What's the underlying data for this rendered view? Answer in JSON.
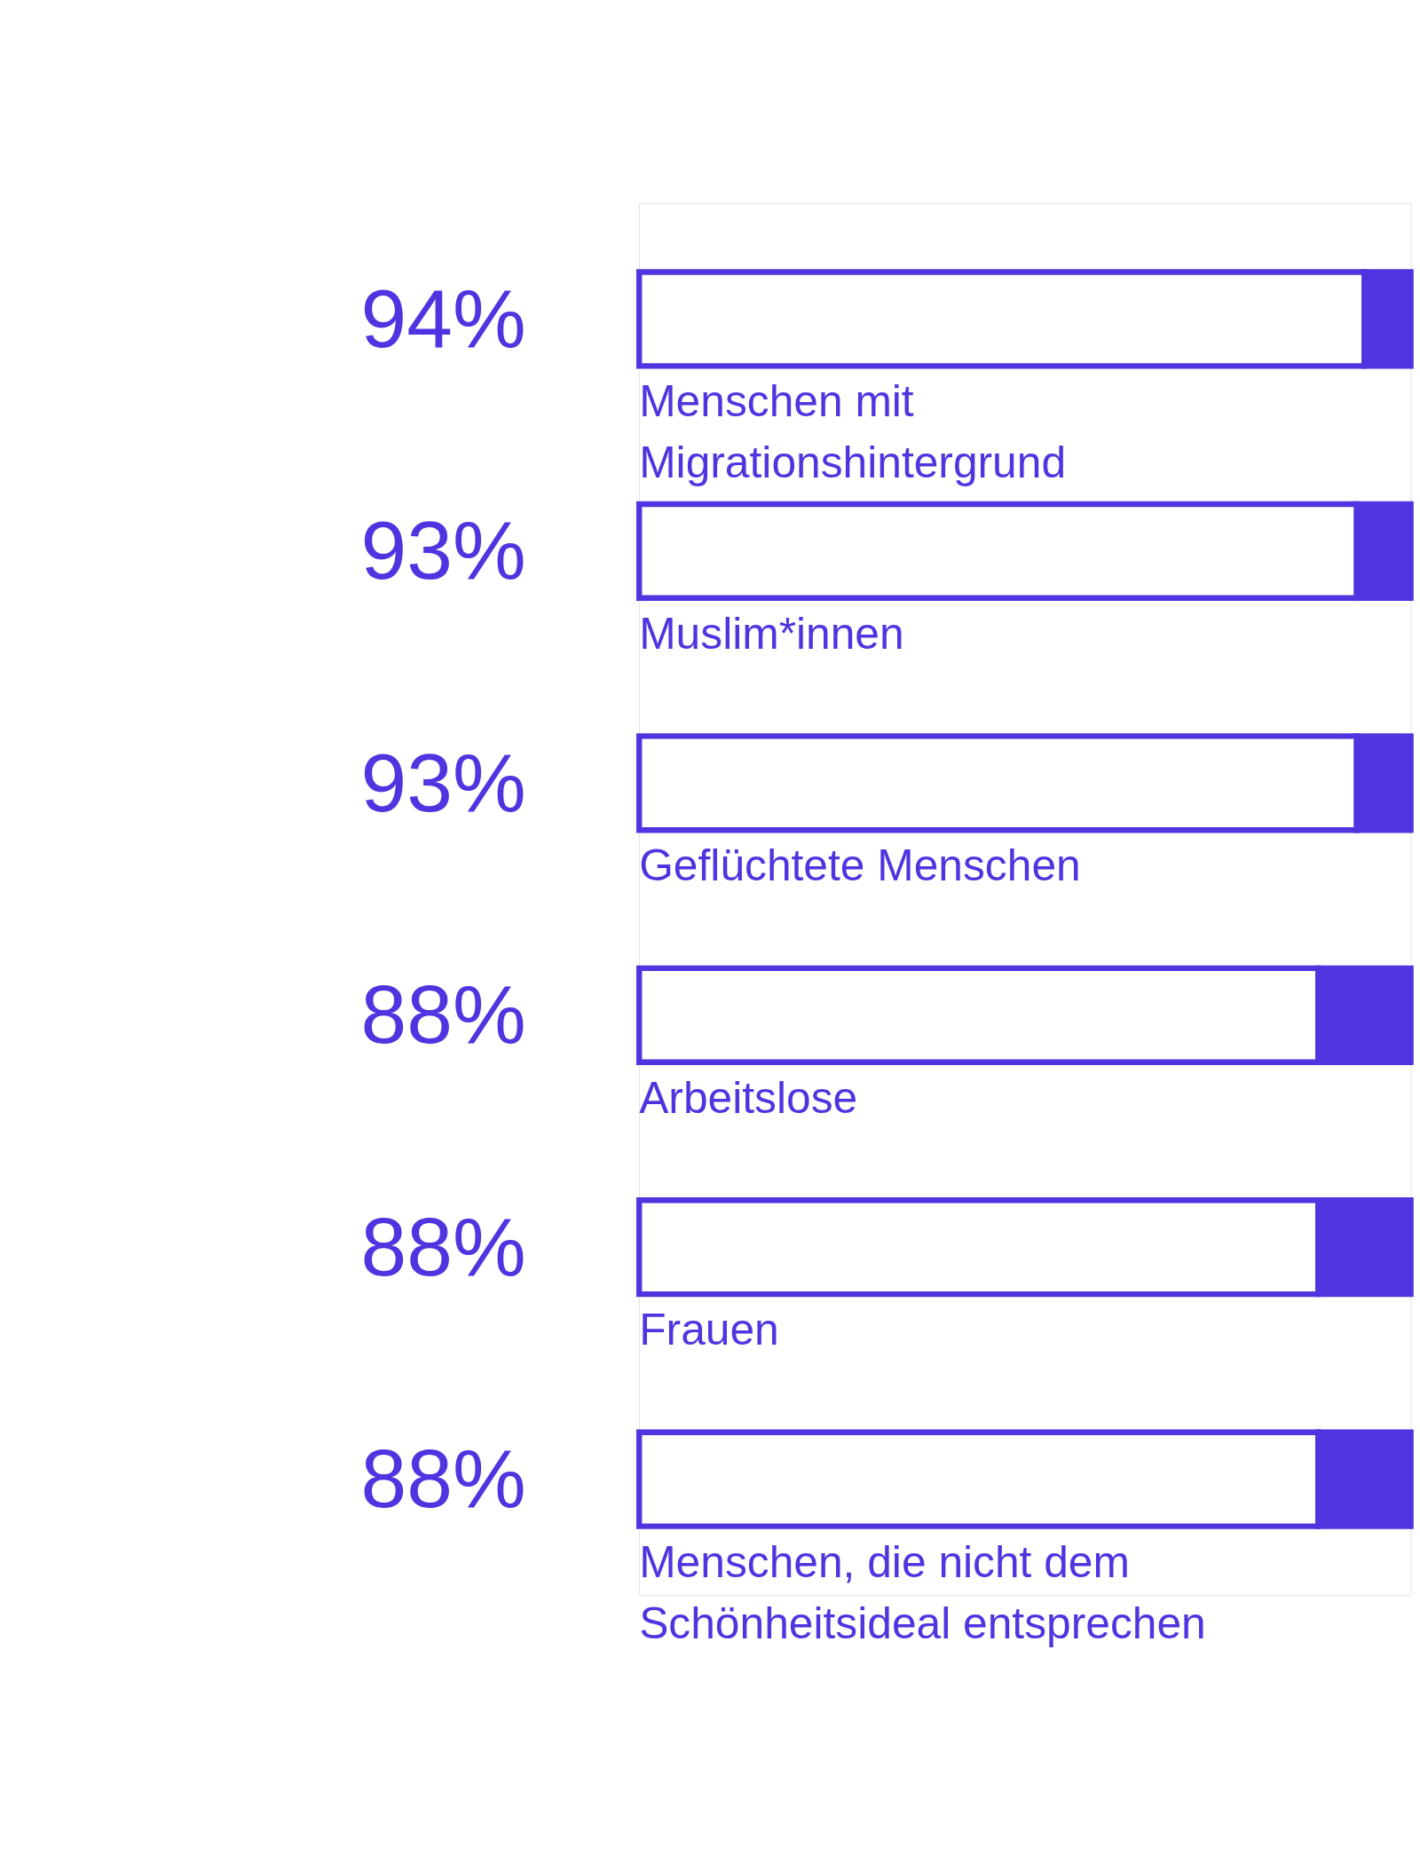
{
  "chart_data": {
    "type": "bar",
    "orientation": "horizontal",
    "stacked": true,
    "categories": [
      "Menschen mit\nMigrationshintergrund",
      "Muslim*innen",
      "Geflüchtete Menschen",
      "Arbeitslose",
      "Frauen",
      "Menschen, die nicht dem\nSchönheitsideal entsprechen"
    ],
    "series": [
      {
        "color": "#ffffff",
        "values": [
          94,
          93,
          93,
          88,
          88,
          88
        ],
        "value_labels": [
          "94%",
          "93%",
          "93%",
          "88%",
          "88%",
          "88%"
        ]
      },
      {
        "color": "#5034e0",
        "values": [
          6,
          7,
          7,
          12,
          12,
          12
        ]
      }
    ]
  }
}
